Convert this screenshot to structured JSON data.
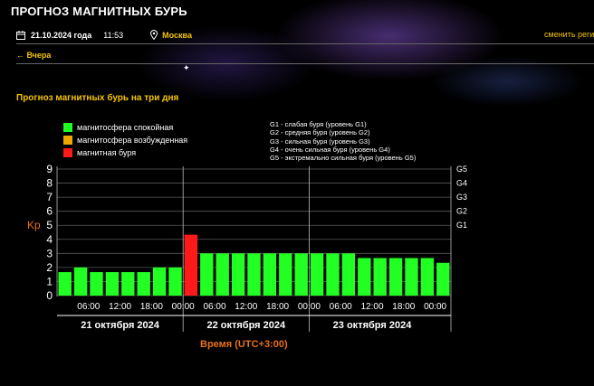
{
  "header": {
    "site_title": "ПРОГНОЗ МАГНИТНЫХ БУРЬ",
    "date": "21.10.2024 года",
    "time": "11:53",
    "city": "Москва",
    "change_region": "сменить реги"
  },
  "nav": {
    "back_label": "← Вчера"
  },
  "section": {
    "title": "Прогноз магнитных бурь на три дня"
  },
  "legend": {
    "items": [
      {
        "label": "магнитосфера спокойная",
        "color": "#22ff22"
      },
      {
        "label": "магнитосфера возбужденная",
        "color": "#f0a800"
      },
      {
        "label": "магнитная буря",
        "color": "#ff1a1a"
      }
    ],
    "levels": [
      "G1 - слабая буря (уровень G1)",
      "G2 - средняя буря (уровень G2)",
      "G3 - сильная буря (уровень G3)",
      "G4 - очень сильная буря (уровень G4)",
      "G5 - экстремально сильная буря (уровень G5)"
    ]
  },
  "chart_data": {
    "type": "bar",
    "ylabel": "Kp",
    "xlabel": "Время (UTC+3:00)",
    "ylim": [
      0,
      9
    ],
    "y_ticks": [
      "0",
      "1",
      "2",
      "3",
      "4",
      "5",
      "6",
      "7",
      "8",
      "9"
    ],
    "y2_ticks": [
      "G1",
      "G2",
      "G3",
      "G4",
      "G5"
    ],
    "y2_values": [
      5,
      6,
      7,
      8,
      9
    ],
    "x_ticks": [
      "06:00",
      "12:00",
      "18:00",
      "00:00",
      "06:00",
      "12:00",
      "18:00",
      "00:00",
      "06:00",
      "12:00",
      "18:00",
      "00:00"
    ],
    "days": [
      "21 октября 2024",
      "22 октября 2024",
      "23 октября 2024"
    ],
    "grid": "horizontal",
    "values": [
      1.67,
      2,
      1.67,
      1.67,
      1.67,
      1.67,
      2,
      2,
      4.33,
      3,
      3,
      3,
      3,
      3,
      3,
      3,
      3,
      3,
      3,
      2.67,
      2.67,
      2.67,
      2.67,
      2.67,
      2.33
    ],
    "colors": [
      "#22ff22",
      "#22ff22",
      "#22ff22",
      "#22ff22",
      "#22ff22",
      "#22ff22",
      "#22ff22",
      "#22ff22",
      "#ff1a1a",
      "#22ff22",
      "#22ff22",
      "#22ff22",
      "#22ff22",
      "#22ff22",
      "#22ff22",
      "#22ff22",
      "#22ff22",
      "#22ff22",
      "#22ff22",
      "#22ff22",
      "#22ff22",
      "#22ff22",
      "#22ff22",
      "#22ff22",
      "#22ff22"
    ]
  }
}
